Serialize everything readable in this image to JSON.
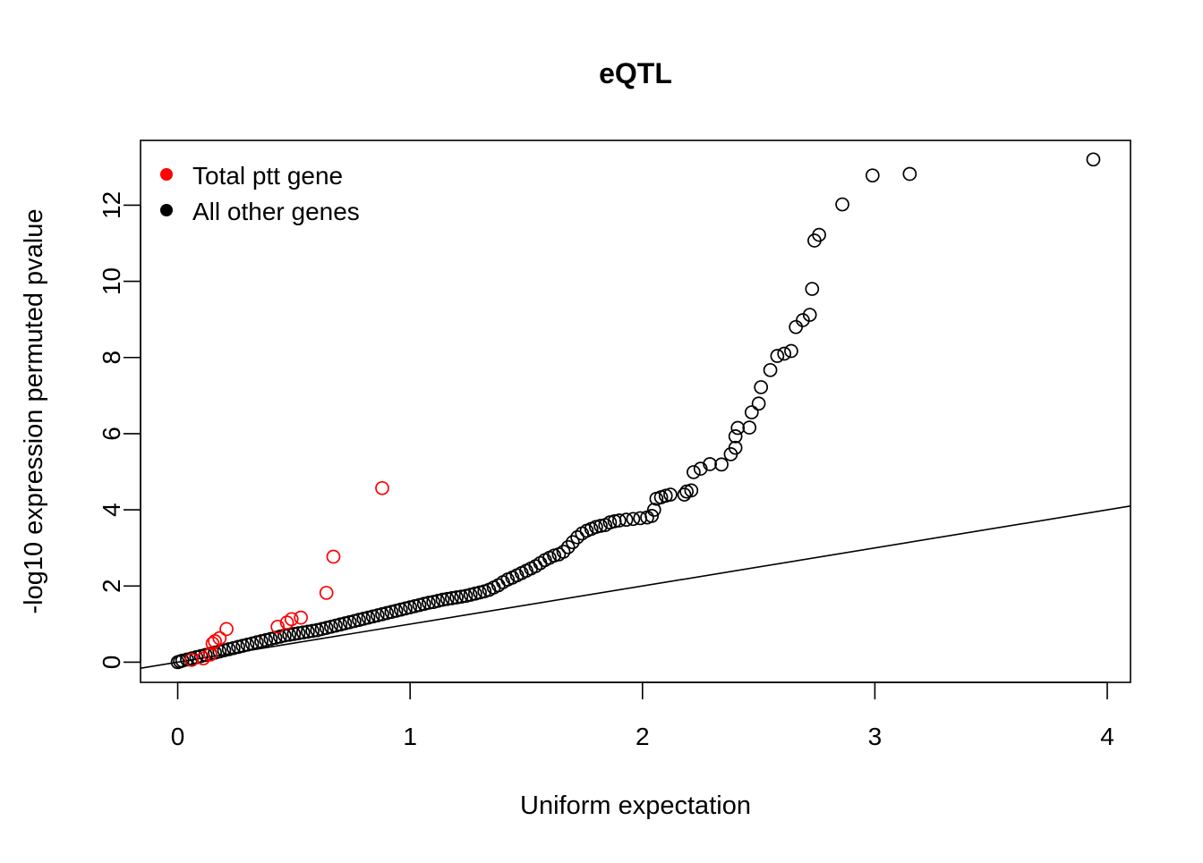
{
  "chart_data": {
    "type": "scatter",
    "title": "eQTL",
    "xlabel": "Uniform expectation",
    "ylabel": "-log10 expression permuted pvalue",
    "xlim": [
      -0.16,
      4.1
    ],
    "ylim": [
      -0.53,
      13.7
    ],
    "x_ticks": [
      0,
      1,
      2,
      3,
      4
    ],
    "x_tick_labels": [
      "0",
      "1",
      "2",
      "3",
      "4"
    ],
    "y_ticks": [
      0,
      2,
      4,
      6,
      8,
      10,
      12
    ],
    "y_tick_labels": [
      "0",
      "2",
      "4",
      "6",
      "8",
      "10",
      "12"
    ],
    "grid": false,
    "legend_position": "top-left",
    "legend": [
      {
        "label": "Total ptt gene",
        "color": "#ff0000"
      },
      {
        "label": "All other genes",
        "color": "#000000"
      }
    ],
    "reference_line": {
      "label": "y = x",
      "slope": 1,
      "intercept": 0
    },
    "series": [
      {
        "name": "All other genes",
        "color": "#000000",
        "points": [
          [
            3.94,
            13.2
          ],
          [
            3.15,
            12.82
          ],
          [
            2.99,
            12.78
          ],
          [
            2.86,
            12.02
          ],
          [
            2.76,
            11.22
          ],
          [
            2.74,
            11.07
          ],
          [
            2.73,
            9.8
          ],
          [
            2.72,
            9.12
          ],
          [
            2.69,
            8.98
          ],
          [
            2.66,
            8.8
          ],
          [
            2.64,
            8.17
          ],
          [
            2.61,
            8.1
          ],
          [
            2.58,
            8.04
          ],
          [
            2.55,
            7.67
          ],
          [
            2.51,
            7.22
          ],
          [
            2.5,
            6.79
          ],
          [
            2.47,
            6.56
          ],
          [
            2.46,
            6.16
          ],
          [
            2.41,
            6.15
          ],
          [
            2.4,
            5.93
          ],
          [
            2.4,
            5.63
          ],
          [
            2.38,
            5.46
          ],
          [
            2.34,
            5.19
          ],
          [
            2.29,
            5.2
          ],
          [
            2.25,
            5.08
          ],
          [
            2.22,
            4.99
          ],
          [
            2.21,
            4.51
          ],
          [
            2.19,
            4.48
          ],
          [
            2.18,
            4.4
          ],
          [
            2.12,
            4.4
          ],
          [
            2.1,
            4.37
          ],
          [
            2.08,
            4.33
          ],
          [
            2.06,
            4.29
          ],
          [
            2.05,
            4.0
          ],
          [
            2.04,
            3.84
          ],
          [
            2.02,
            3.8
          ],
          [
            1.99,
            3.78
          ],
          [
            1.96,
            3.76
          ],
          [
            1.93,
            3.74
          ],
          [
            1.9,
            3.72
          ],
          [
            1.88,
            3.7
          ],
          [
            1.86,
            3.67
          ],
          [
            1.84,
            3.6
          ],
          [
            1.82,
            3.58
          ],
          [
            1.8,
            3.55
          ],
          [
            1.78,
            3.5
          ],
          [
            1.76,
            3.45
          ],
          [
            1.74,
            3.38
          ],
          [
            1.72,
            3.28
          ],
          [
            1.7,
            3.15
          ],
          [
            1.68,
            3.02
          ],
          [
            1.66,
            2.9
          ],
          [
            1.64,
            2.83
          ],
          [
            1.62,
            2.8
          ],
          [
            1.6,
            2.74
          ],
          [
            1.58,
            2.68
          ],
          [
            1.56,
            2.6
          ],
          [
            1.54,
            2.52
          ],
          [
            1.52,
            2.46
          ],
          [
            1.5,
            2.4
          ],
          [
            1.48,
            2.34
          ],
          [
            1.46,
            2.28
          ],
          [
            1.44,
            2.22
          ],
          [
            1.42,
            2.17
          ],
          [
            1.4,
            2.1
          ],
          [
            1.38,
            2.02
          ],
          [
            1.36,
            1.96
          ],
          [
            1.34,
            1.9
          ],
          [
            1.32,
            1.86
          ],
          [
            1.3,
            1.83
          ],
          [
            1.28,
            1.8
          ],
          [
            1.26,
            1.77
          ],
          [
            1.24,
            1.74
          ],
          [
            1.22,
            1.72
          ],
          [
            1.2,
            1.7
          ],
          [
            1.18,
            1.68
          ],
          [
            1.16,
            1.66
          ],
          [
            1.14,
            1.64
          ],
          [
            1.12,
            1.61
          ],
          [
            1.1,
            1.58
          ],
          [
            1.08,
            1.56
          ],
          [
            1.06,
            1.53
          ],
          [
            1.04,
            1.5
          ],
          [
            1.02,
            1.47
          ],
          [
            1.0,
            1.44
          ],
          [
            0.98,
            1.41
          ],
          [
            0.96,
            1.38
          ],
          [
            0.94,
            1.35
          ],
          [
            0.92,
            1.32
          ],
          [
            0.9,
            1.29
          ],
          [
            0.88,
            1.26
          ],
          [
            0.86,
            1.23
          ],
          [
            0.84,
            1.2
          ],
          [
            0.82,
            1.17
          ],
          [
            0.8,
            1.14
          ],
          [
            0.78,
            1.11
          ],
          [
            0.76,
            1.08
          ],
          [
            0.74,
            1.05
          ],
          [
            0.72,
            1.02
          ],
          [
            0.7,
            0.99
          ],
          [
            0.68,
            0.96
          ],
          [
            0.66,
            0.93
          ],
          [
            0.64,
            0.9
          ],
          [
            0.62,
            0.87
          ],
          [
            0.6,
            0.84
          ],
          [
            0.58,
            0.82
          ],
          [
            0.56,
            0.8
          ],
          [
            0.54,
            0.78
          ],
          [
            0.52,
            0.76
          ],
          [
            0.5,
            0.74
          ],
          [
            0.48,
            0.72
          ],
          [
            0.46,
            0.7
          ],
          [
            0.44,
            0.67
          ],
          [
            0.42,
            0.64
          ],
          [
            0.4,
            0.61
          ],
          [
            0.38,
            0.58
          ],
          [
            0.36,
            0.55
          ],
          [
            0.34,
            0.52
          ],
          [
            0.32,
            0.49
          ],
          [
            0.3,
            0.46
          ],
          [
            0.28,
            0.43
          ],
          [
            0.26,
            0.4
          ],
          [
            0.24,
            0.37
          ],
          [
            0.22,
            0.34
          ],
          [
            0.2,
            0.31
          ],
          [
            0.18,
            0.28
          ],
          [
            0.16,
            0.25
          ],
          [
            0.14,
            0.22
          ],
          [
            0.12,
            0.19
          ],
          [
            0.1,
            0.16
          ],
          [
            0.08,
            0.13
          ],
          [
            0.06,
            0.1
          ],
          [
            0.04,
            0.07
          ],
          [
            0.02,
            0.04
          ],
          [
            0.01,
            0.02
          ],
          [
            0.0,
            0.0
          ]
        ]
      },
      {
        "name": "Total ptt gene",
        "color": "#ff0000",
        "points": [
          [
            0.88,
            4.57
          ],
          [
            0.67,
            2.77
          ],
          [
            0.64,
            1.82
          ],
          [
            0.53,
            1.17
          ],
          [
            0.49,
            1.13
          ],
          [
            0.47,
            1.04
          ],
          [
            0.43,
            0.93
          ],
          [
            0.21,
            0.87
          ],
          [
            0.18,
            0.63
          ],
          [
            0.16,
            0.55
          ],
          [
            0.15,
            0.49
          ],
          [
            0.14,
            0.2
          ],
          [
            0.11,
            0.1
          ],
          [
            0.06,
            0.06
          ]
        ]
      }
    ]
  }
}
